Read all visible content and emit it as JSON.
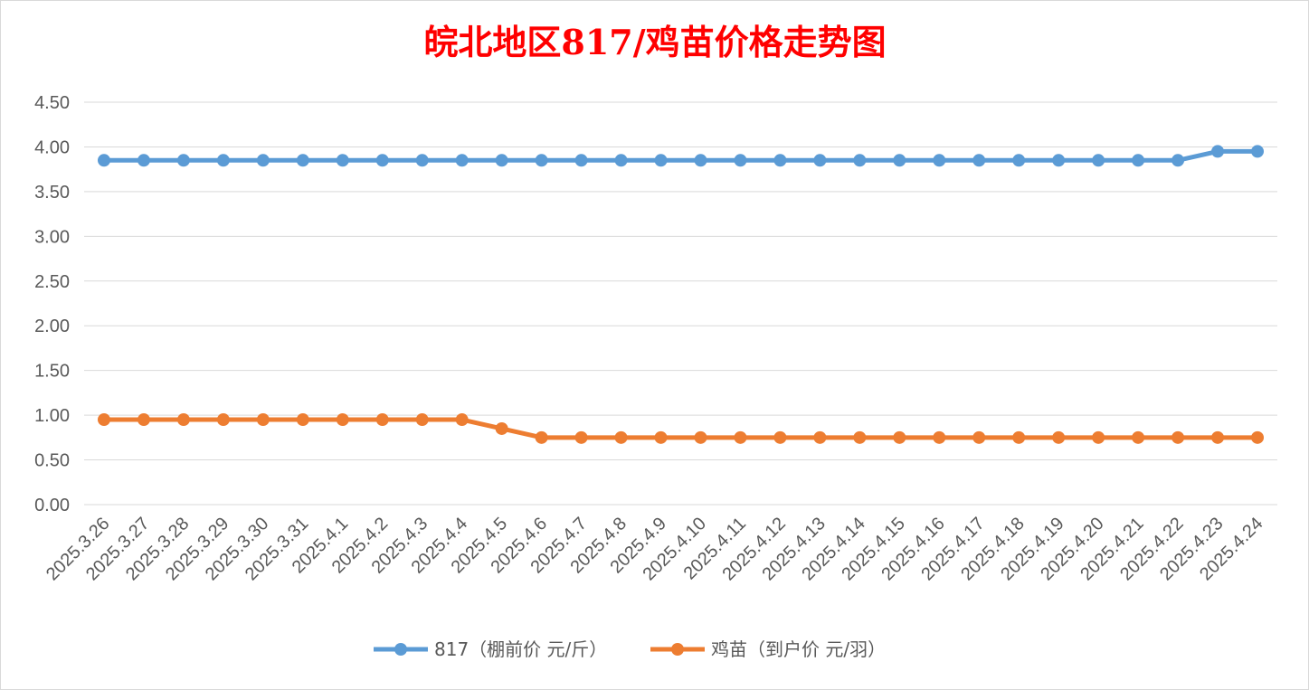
{
  "chart_data": {
    "type": "line",
    "title": "皖北地区817/鸡苗价格走势图",
    "title_color": "#ff0000",
    "xlabel": "",
    "ylabel": "",
    "ylim": [
      0,
      4.5
    ],
    "ytick_step": 0.5,
    "grid": true,
    "legend_position": "bottom",
    "categories": [
      "2025.3.26",
      "2025.3.27",
      "2025.3.28",
      "2025.3.29",
      "2025.3.30",
      "2025.3.31",
      "2025.4.1",
      "2025.4.2",
      "2025.4.3",
      "2025.4.4",
      "2025.4.5",
      "2025.4.6",
      "2025.4.7",
      "2025.4.8",
      "2025.4.9",
      "2025.4.10",
      "2025.4.11",
      "2025.4.12",
      "2025.4.13",
      "2025.4.14",
      "2025.4.15",
      "2025.4.16",
      "2025.4.17",
      "2025.4.18",
      "2025.4.19",
      "2025.4.20",
      "2025.4.21",
      "2025.4.22",
      "2025.4.23",
      "2025.4.24"
    ],
    "series": [
      {
        "name": "817（棚前价 元/斤）",
        "color": "#5b9bd5",
        "values": [
          3.85,
          3.85,
          3.85,
          3.85,
          3.85,
          3.85,
          3.85,
          3.85,
          3.85,
          3.85,
          3.85,
          3.85,
          3.85,
          3.85,
          3.85,
          3.85,
          3.85,
          3.85,
          3.85,
          3.85,
          3.85,
          3.85,
          3.85,
          3.85,
          3.85,
          3.85,
          3.85,
          3.85,
          3.95,
          3.95
        ]
      },
      {
        "name": "鸡苗（到户价 元/羽）",
        "color": "#ed7d31",
        "values": [
          0.95,
          0.95,
          0.95,
          0.95,
          0.95,
          0.95,
          0.95,
          0.95,
          0.95,
          0.95,
          0.85,
          0.75,
          0.75,
          0.75,
          0.75,
          0.75,
          0.75,
          0.75,
          0.75,
          0.75,
          0.75,
          0.75,
          0.75,
          0.75,
          0.75,
          0.75,
          0.75,
          0.75,
          0.75,
          0.75
        ]
      }
    ]
  }
}
